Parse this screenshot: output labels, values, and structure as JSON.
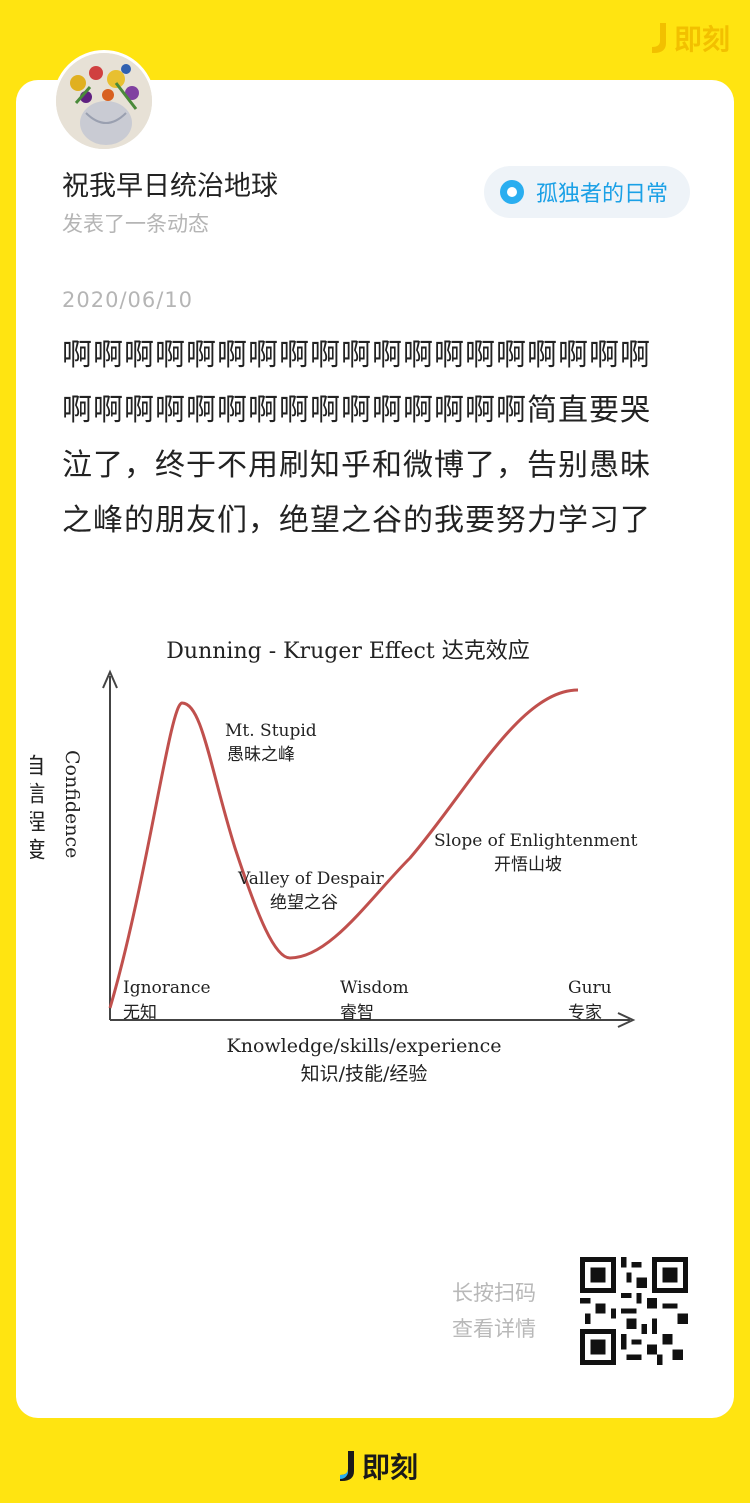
{
  "brand": {
    "top_logo": "即刻",
    "bottom_logo": "即刻"
  },
  "post": {
    "username": "祝我早日统治地球",
    "subline": "发表了一条动态",
    "topic": "孤独者的日常",
    "date": "2020/06/10",
    "text": "啊啊啊啊啊啊啊啊啊啊啊啊啊啊啊啊啊啊啊啊啊啊啊啊啊啊啊啊啊啊啊啊啊啊简直要哭泣了，终于不用刷知乎和微博了，告别愚昧之峰的朋友们，绝望之谷的我要努力学习了"
  },
  "diagram": {
    "title": "Dunning - Kruger Effect 达克效应",
    "y_label_cn": "自信程度",
    "y_label_en": "Confidence",
    "x_label_en": "Knowledge/skills/experience",
    "x_label_cn": "知识/技能/经验",
    "annotations": {
      "peak_en": "Mt. Stupid",
      "peak_cn": "愚昧之峰",
      "valley_en": "Valley of Despair",
      "valley_cn": "绝望之谷",
      "slope_en": "Slope of Enlightenment",
      "slope_cn": "开悟山坡",
      "ignorance_en": "Ignorance",
      "ignorance_cn": "无知",
      "wisdom_en": "Wisdom",
      "wisdom_cn": "睿智",
      "guru_en": "Guru",
      "guru_cn": "专家"
    },
    "curve_color": "#c0504d"
  },
  "qr": {
    "line1": "长按扫码",
    "line2": "查看详情"
  },
  "colors": {
    "background": "#FFE411",
    "card": "#ffffff",
    "topic_accent": "#1aa0e6"
  }
}
